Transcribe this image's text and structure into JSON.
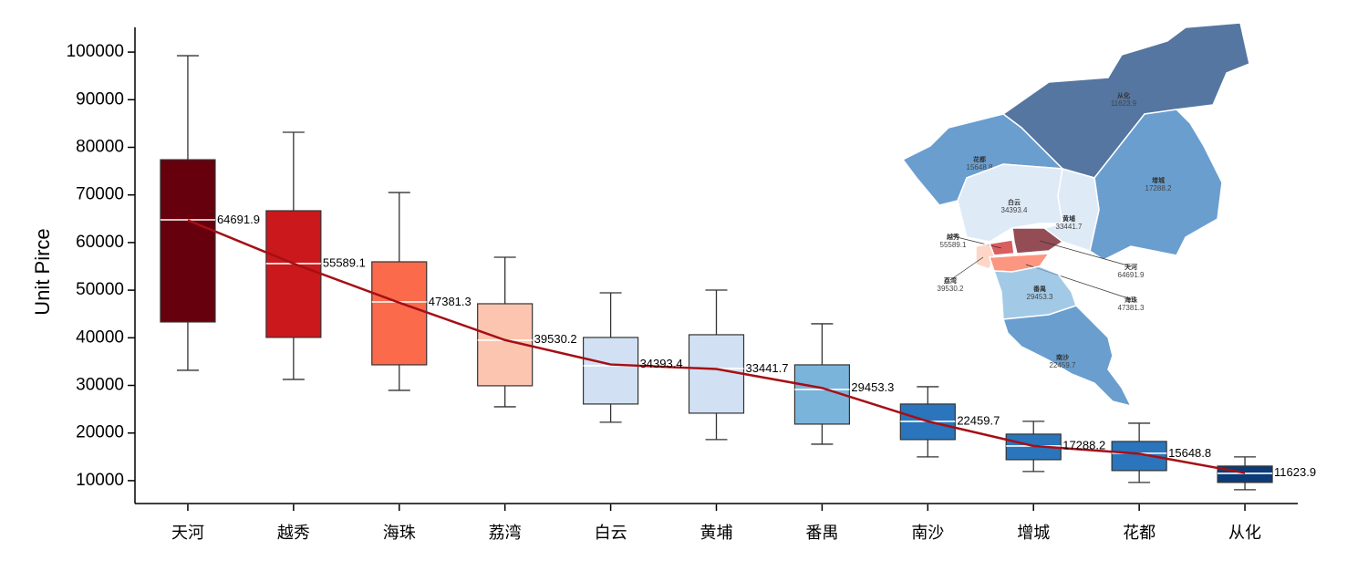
{
  "chart_data": {
    "type": "box",
    "ylabel": "Unit Pirce",
    "categories": [
      "天河",
      "越秀",
      "海珠",
      "荔湾",
      "白云",
      "黄埔",
      "番禺",
      "南沙",
      "增城",
      "花都",
      "从化"
    ],
    "whisker_high": [
      99240,
      83160,
      70510,
      56920,
      49450,
      50020,
      42940,
      29720,
      22450,
      22060,
      14980
    ],
    "q3": [
      77400,
      66680,
      55960,
      47150,
      40070,
      40640,
      34320,
      26090,
      19770,
      18230,
      13060
    ],
    "median": [
      64770,
      55590,
      47530,
      39490,
      34130,
      33550,
      29150,
      22450,
      17280,
      15750,
      11530
    ],
    "q1": [
      43320,
      40080,
      34320,
      29920,
      26090,
      24170,
      21870,
      18620,
      14400,
      12110,
      9620
    ],
    "whisker_low": [
      33170,
      31260,
      28960,
      25510,
      22260,
      18620,
      17660,
      14980,
      11920,
      9620,
      8090
    ],
    "means": [
      64691.9,
      55589.1,
      47381.3,
      39530.2,
      34393.4,
      33441.7,
      29453.3,
      22459.7,
      17288.2,
      15648.8,
      11623.9
    ],
    "colors": [
      "#67000d",
      "#cb181d",
      "#fb6a4a",
      "#fcc5b0",
      "#d1e1f3",
      "#d1e1f3",
      "#7ab4db",
      "#2a75bb",
      "#2a75bb",
      "#2a75bb",
      "#0c3c78"
    ],
    "line_color": "#a50f15",
    "ylim": [
      5000,
      105000
    ],
    "yticks": [
      10000,
      20000,
      30000,
      40000,
      50000,
      60000,
      70000,
      80000,
      90000,
      100000
    ]
  }
}
